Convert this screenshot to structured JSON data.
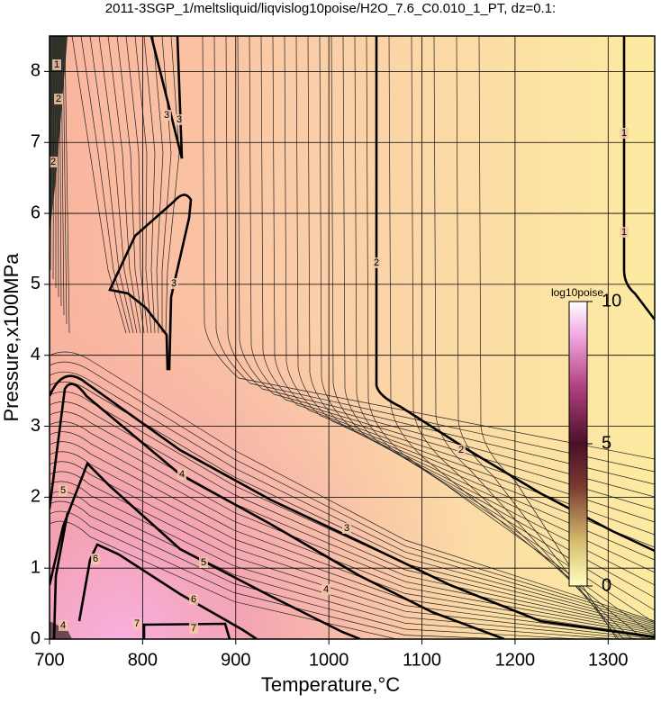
{
  "chart_data": {
    "type": "contour",
    "title": "2011-3SGP_1/meltsliquid/liqvislog10poise/H2O_7.6_C0.010_1_PT, dz=0.1:",
    "xlabel": "Temperature,°C",
    "ylabel": "Pressure,x100MPa",
    "xlim": [
      700,
      1350
    ],
    "xticks": [
      700,
      800,
      900,
      1000,
      1100,
      1200,
      1300
    ],
    "ylim": [
      0,
      8.5
    ],
    "yticks": [
      0,
      1,
      2,
      3,
      4,
      5,
      6,
      7,
      8
    ],
    "grid": true,
    "colorbar": {
      "label": "log10poise",
      "lim": [
        0,
        10
      ],
      "ticks": [
        0,
        5,
        10
      ]
    },
    "contour_labels": [
      3,
      3,
      3,
      2,
      2,
      1,
      1,
      4,
      3,
      5,
      5,
      4,
      6,
      6,
      7,
      7,
      2,
      1,
      2,
      4
    ]
  }
}
